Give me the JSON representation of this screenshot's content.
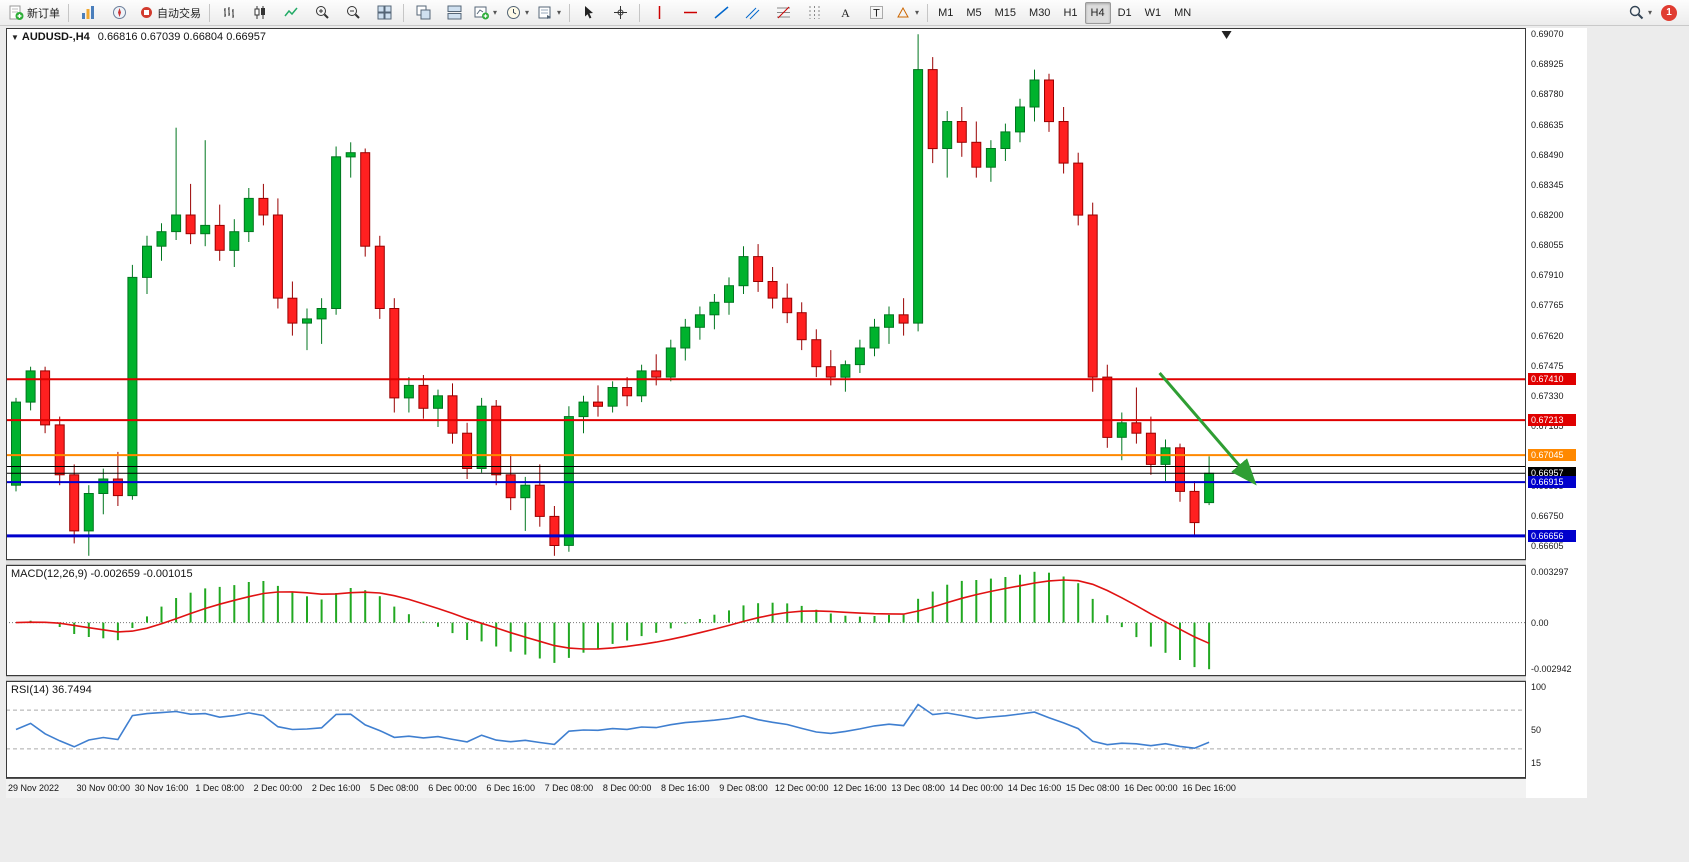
{
  "toolbar": {
    "new_order": "新订单",
    "autotrading": "自动交易",
    "timeframes": [
      "M1",
      "M5",
      "M15",
      "M30",
      "H1",
      "H4",
      "D1",
      "W1",
      "MN"
    ],
    "active_timeframe": "H4",
    "notification_count": "1"
  },
  "window": {
    "title_symbol": "AUDUSD-,H4",
    "title_ohlc": "0.66816 0.67039 0.66804 0.66957"
  },
  "macd": {
    "name": "MACD(12,26,9)",
    "values": "-0.002659 -0.001015",
    "axis_top": "0.003297",
    "axis_zero": "0.00",
    "axis_bottom": "-0.002942"
  },
  "rsi": {
    "name": "RSI(14)",
    "value": "36.7494",
    "axis_top": "100",
    "axis_mid": "50",
    "axis_bottom": "15",
    "levels": [
      70,
      30
    ]
  },
  "colors": {
    "candle_up": "#00b22d",
    "candle_up_edge": "#00761f",
    "candle_down": "#ff2020",
    "candle_down_edge": "#9a0000",
    "macd_histogram": "#22a822",
    "macd_signal": "#e01212",
    "rsi_line": "#3f7fd0",
    "arrow_green": "#2f9e33",
    "axis_text": "#1a1a1a"
  },
  "chart_data": {
    "type": "candlestick",
    "symbol": "AUDUSD-",
    "period": "H4",
    "price_axis": {
      "top": 0.691,
      "bottom": 0.6654,
      "tick_first": 0.6907,
      "tick_step": 0.00145,
      "tick_count": 18
    },
    "candles": [
      [
        0.669,
        0.6732,
        0.6687,
        0.673
      ],
      [
        0.673,
        0.6747,
        0.6726,
        0.6745
      ],
      [
        0.6745,
        0.6747,
        0.6715,
        0.6719
      ],
      [
        0.6719,
        0.6723,
        0.669,
        0.6695
      ],
      [
        0.6695,
        0.67,
        0.6662,
        0.6668
      ],
      [
        0.6668,
        0.669,
        0.6656,
        0.6686
      ],
      [
        0.6686,
        0.6698,
        0.6676,
        0.6693
      ],
      [
        0.6693,
        0.6706,
        0.668,
        0.6685
      ],
      [
        0.6685,
        0.6796,
        0.6683,
        0.679
      ],
      [
        0.679,
        0.681,
        0.6782,
        0.6805
      ],
      [
        0.6805,
        0.6816,
        0.6798,
        0.6812
      ],
      [
        0.6812,
        0.6862,
        0.6808,
        0.682
      ],
      [
        0.682,
        0.6835,
        0.6806,
        0.6811
      ],
      [
        0.6811,
        0.6856,
        0.6805,
        0.6815
      ],
      [
        0.6815,
        0.6825,
        0.6798,
        0.6803
      ],
      [
        0.6803,
        0.6818,
        0.6795,
        0.6812
      ],
      [
        0.6812,
        0.6833,
        0.6807,
        0.6828
      ],
      [
        0.6828,
        0.6835,
        0.6815,
        0.682
      ],
      [
        0.682,
        0.6828,
        0.6775,
        0.678
      ],
      [
        0.678,
        0.6788,
        0.6762,
        0.6768
      ],
      [
        0.6768,
        0.6775,
        0.6755,
        0.677
      ],
      [
        0.677,
        0.678,
        0.6758,
        0.6775
      ],
      [
        0.6775,
        0.6853,
        0.6772,
        0.6848
      ],
      [
        0.6848,
        0.6855,
        0.6838,
        0.685
      ],
      [
        0.685,
        0.6852,
        0.68,
        0.6805
      ],
      [
        0.6805,
        0.681,
        0.677,
        0.6775
      ],
      [
        0.6775,
        0.678,
        0.6725,
        0.6732
      ],
      [
        0.6732,
        0.6742,
        0.6725,
        0.6738
      ],
      [
        0.6738,
        0.6743,
        0.6722,
        0.6727
      ],
      [
        0.6727,
        0.6736,
        0.6718,
        0.6733
      ],
      [
        0.6733,
        0.6739,
        0.671,
        0.6715
      ],
      [
        0.6715,
        0.672,
        0.6693,
        0.6698
      ],
      [
        0.6698,
        0.6732,
        0.6696,
        0.6728
      ],
      [
        0.6728,
        0.6731,
        0.669,
        0.6695
      ],
      [
        0.6695,
        0.6705,
        0.6678,
        0.6684
      ],
      [
        0.6684,
        0.6694,
        0.6668,
        0.669
      ],
      [
        0.669,
        0.67,
        0.667,
        0.6675
      ],
      [
        0.6675,
        0.668,
        0.6656,
        0.6661
      ],
      [
        0.6661,
        0.6728,
        0.6658,
        0.6723
      ],
      [
        0.6723,
        0.6733,
        0.6715,
        0.673
      ],
      [
        0.673,
        0.6738,
        0.6723,
        0.6728
      ],
      [
        0.6728,
        0.674,
        0.6725,
        0.6737
      ],
      [
        0.6737,
        0.6742,
        0.6728,
        0.6733
      ],
      [
        0.6733,
        0.6748,
        0.673,
        0.6745
      ],
      [
        0.6745,
        0.6753,
        0.6738,
        0.6742
      ],
      [
        0.6742,
        0.676,
        0.674,
        0.6756
      ],
      [
        0.6756,
        0.677,
        0.675,
        0.6766
      ],
      [
        0.6766,
        0.6776,
        0.676,
        0.6772
      ],
      [
        0.6772,
        0.6782,
        0.6765,
        0.6778
      ],
      [
        0.6778,
        0.679,
        0.6772,
        0.6786
      ],
      [
        0.6786,
        0.6805,
        0.6782,
        0.68
      ],
      [
        0.68,
        0.6806,
        0.6783,
        0.6788
      ],
      [
        0.6788,
        0.6795,
        0.6775,
        0.678
      ],
      [
        0.678,
        0.6787,
        0.6768,
        0.6773
      ],
      [
        0.6773,
        0.6778,
        0.6755,
        0.676
      ],
      [
        0.676,
        0.6765,
        0.6742,
        0.6747
      ],
      [
        0.6747,
        0.6755,
        0.6738,
        0.6742
      ],
      [
        0.6742,
        0.675,
        0.6735,
        0.6748
      ],
      [
        0.6748,
        0.676,
        0.6744,
        0.6756
      ],
      [
        0.6756,
        0.677,
        0.6752,
        0.6766
      ],
      [
        0.6766,
        0.6776,
        0.6758,
        0.6772
      ],
      [
        0.6772,
        0.678,
        0.6762,
        0.6768
      ],
      [
        0.6768,
        0.6907,
        0.6764,
        0.689
      ],
      [
        0.689,
        0.6896,
        0.6845,
        0.6852
      ],
      [
        0.6852,
        0.687,
        0.6838,
        0.6865
      ],
      [
        0.6865,
        0.6872,
        0.6848,
        0.6855
      ],
      [
        0.6855,
        0.6865,
        0.6838,
        0.6843
      ],
      [
        0.6843,
        0.6856,
        0.6836,
        0.6852
      ],
      [
        0.6852,
        0.6864,
        0.6846,
        0.686
      ],
      [
        0.686,
        0.6876,
        0.6855,
        0.6872
      ],
      [
        0.6872,
        0.689,
        0.6865,
        0.6885
      ],
      [
        0.6885,
        0.6888,
        0.686,
        0.6865
      ],
      [
        0.6865,
        0.6872,
        0.684,
        0.6845
      ],
      [
        0.6845,
        0.685,
        0.6815,
        0.682
      ],
      [
        0.682,
        0.6826,
        0.6735,
        0.6742
      ],
      [
        0.6742,
        0.6748,
        0.6708,
        0.6713
      ],
      [
        0.6713,
        0.6725,
        0.6702,
        0.672
      ],
      [
        0.672,
        0.6737,
        0.671,
        0.6715
      ],
      [
        0.6715,
        0.6723,
        0.6695,
        0.67
      ],
      [
        0.67,
        0.6712,
        0.6692,
        0.6708
      ],
      [
        0.6708,
        0.671,
        0.6682,
        0.6687
      ],
      [
        0.6687,
        0.6692,
        0.6665,
        0.6672
      ],
      [
        0.66816,
        0.67039,
        0.66804,
        0.66957
      ]
    ],
    "time_labels": [
      {
        "text": "29 Nov 2022",
        "bar": 0
      },
      {
        "text": "30 Nov 00:00",
        "bar": 6
      },
      {
        "text": "30 Nov 16:00",
        "bar": 10
      },
      {
        "text": "1 Dec 08:00",
        "bar": 14
      },
      {
        "text": "2 Dec 00:00",
        "bar": 18
      },
      {
        "text": "2 Dec 16:00",
        "bar": 22
      },
      {
        "text": "5 Dec 08:00",
        "bar": 26
      },
      {
        "text": "6 Dec 00:00",
        "bar": 30
      },
      {
        "text": "6 Dec 16:00",
        "bar": 34
      },
      {
        "text": "7 Dec 08:00",
        "bar": 38
      },
      {
        "text": "8 Dec 00:00",
        "bar": 42
      },
      {
        "text": "8 Dec 16:00",
        "bar": 46
      },
      {
        "text": "9 Dec 08:00",
        "bar": 50
      },
      {
        "text": "12 Dec 00:00",
        "bar": 54
      },
      {
        "text": "12 Dec 16:00",
        "bar": 58
      },
      {
        "text": "13 Dec 08:00",
        "bar": 62
      },
      {
        "text": "14 Dec 00:00",
        "bar": 66
      },
      {
        "text": "14 Dec 16:00",
        "bar": 70
      },
      {
        "text": "15 Dec 08:00",
        "bar": 74
      },
      {
        "text": "16 Dec 00:00",
        "bar": 78
      },
      {
        "text": "16 Dec 16:00",
        "bar": 82
      }
    ],
    "hlines": [
      {
        "price": 0.6741,
        "color": "#e00000",
        "width": 2,
        "badge": "0.67410"
      },
      {
        "price": 0.67213,
        "color": "#e00000",
        "width": 2,
        "badge": "0.67213"
      },
      {
        "price": 0.67045,
        "color": "#ff8800",
        "width": 2,
        "badge": "0.67045"
      },
      {
        "price": 0.6699,
        "color": "#000000",
        "width": 1
      },
      {
        "price": 0.66957,
        "color": "#000000",
        "width": 1,
        "badge": "0.66957"
      },
      {
        "price": 0.66915,
        "color": "#0000cc",
        "width": 2,
        "badge": "0.66915"
      },
      {
        "price": 0.66656,
        "color": "#0000cc",
        "width": 3,
        "badge": "0.66656"
      }
    ],
    "arrow": {
      "bar1": 78.6,
      "price1": 0.6744,
      "bar2": 85.0,
      "price2": 0.6692,
      "color": "#2f9e33"
    },
    "shift_marker_bar": 83.2
  }
}
